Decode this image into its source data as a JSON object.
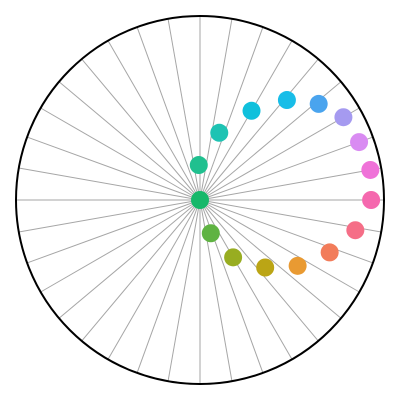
{
  "chart_data": {
    "type": "scatter",
    "coordinate_system": "polar",
    "angle_units": "degrees",
    "angle_zero": "east",
    "angle_direction": "counterclockwise",
    "radial_range": [
      0,
      1
    ],
    "spoke_count": 36,
    "grid": true,
    "axis_labels": false,
    "legend": false,
    "points": [
      {
        "angle": 0,
        "r": 0.0,
        "color": "#16b86a"
      },
      {
        "angle": 92,
        "r": 0.19,
        "color": "#20c08f"
      },
      {
        "angle": 74,
        "r": 0.38,
        "color": "#1ec3b3"
      },
      {
        "angle": 60,
        "r": 0.56,
        "color": "#10c0dc"
      },
      {
        "angle": 49,
        "r": 0.72,
        "color": "#18bde8"
      },
      {
        "angle": 39,
        "r": 0.83,
        "color": "#4aa4ee"
      },
      {
        "angle": 30,
        "r": 0.9,
        "color": "#a59af0"
      },
      {
        "angle": 20,
        "r": 0.92,
        "color": "#d98bf2"
      },
      {
        "angle": 10,
        "r": 0.94,
        "color": "#ef72d8"
      },
      {
        "angle": 0,
        "r": 0.93,
        "color": "#f568ae"
      },
      {
        "angle": -11,
        "r": 0.86,
        "color": "#f56e87"
      },
      {
        "angle": -22,
        "r": 0.76,
        "color": "#f27c5a"
      },
      {
        "angle": -34,
        "r": 0.64,
        "color": "#e99a32"
      },
      {
        "angle": -46,
        "r": 0.51,
        "color": "#bba515"
      },
      {
        "angle": -60,
        "r": 0.36,
        "color": "#98ad21"
      },
      {
        "angle": -72,
        "r": 0.19,
        "color": "#5fb342"
      }
    ]
  }
}
